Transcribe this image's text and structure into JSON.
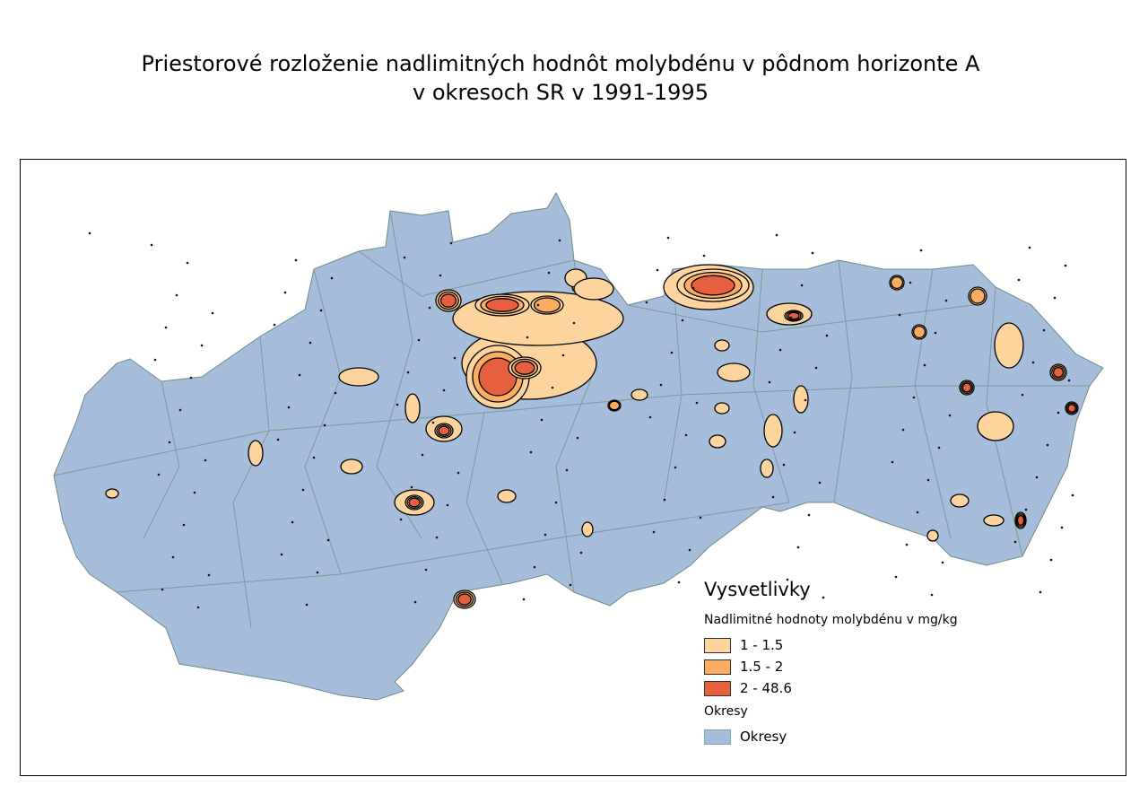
{
  "title": {
    "line1": "Priestorové rozloženie nadlimitných hodnôt molybdénu v pôdnom horizonte A",
    "line2": "v okresoch SR v 1991-1995"
  },
  "legend": {
    "title": "Vysvetlivky",
    "group1_title": "Nadlimitné hodnoty molybdénu v mg/kg",
    "classes": [
      {
        "label": "1 - 1.5",
        "color": "#fdd49e"
      },
      {
        "label": "1.5 - 2",
        "color": "#fcad62"
      },
      {
        "label": "2 - 48.6",
        "color": "#e6603f"
      }
    ],
    "group2_title": "Okresy",
    "districts": {
      "label": "Okresy",
      "color": "#a6bddb"
    }
  }
}
